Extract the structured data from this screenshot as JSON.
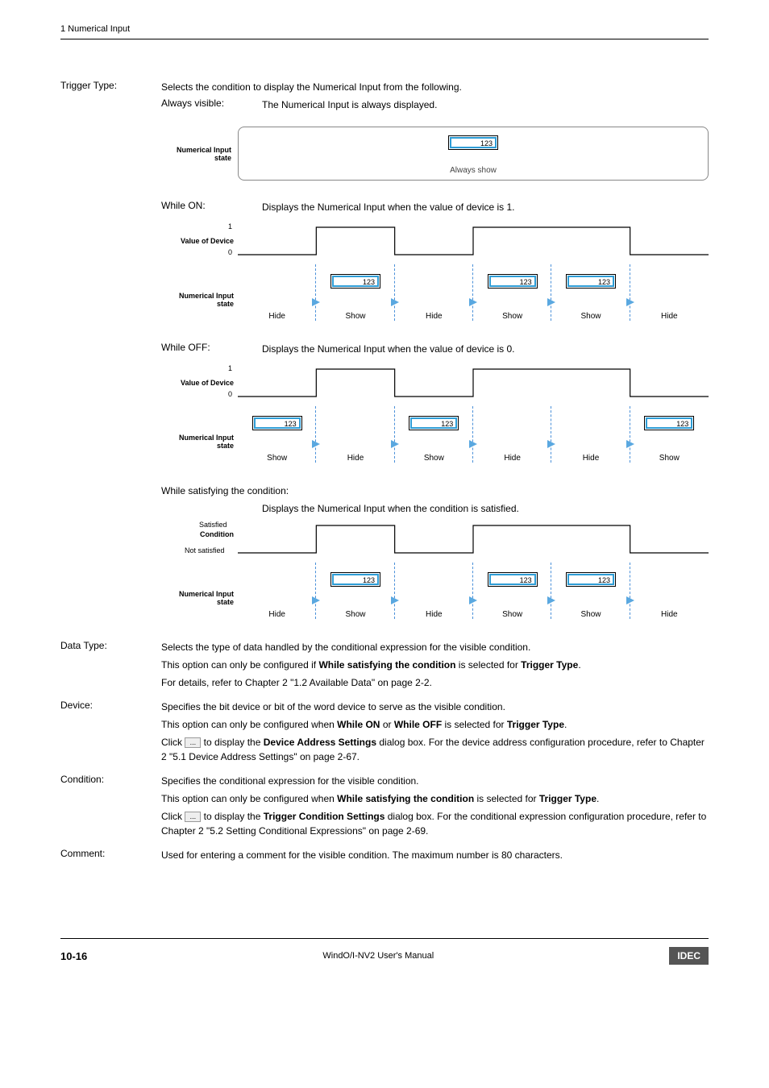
{
  "header": {
    "section": "1 Numerical Input"
  },
  "trigger": {
    "label": "Trigger Type:",
    "desc": "Selects the condition to display the Numerical Input from the following.",
    "always": {
      "label": "Always visible:",
      "desc": "The Numerical Input is always displayed.",
      "diag_label": "Numerical Input state",
      "value": "123",
      "always_show": "Always show"
    },
    "while_on": {
      "label": "While ON:",
      "desc": "Displays the Numerical Input when the value of device is 1.",
      "top_label": "Value of Device",
      "bot_label": "Numerical Input state",
      "tick1": "1",
      "tick0": "0",
      "cells": [
        {
          "label": "Hide",
          "box": false,
          "divider": true
        },
        {
          "label": "Show",
          "box": true,
          "divider": true
        },
        {
          "label": "Hide",
          "box": false,
          "divider": true
        },
        {
          "label": "Show",
          "box": true,
          "divider": true
        },
        {
          "label": "Show",
          "box": true,
          "divider": true
        },
        {
          "label": "Hide",
          "box": false,
          "divider": false
        }
      ],
      "value": "123",
      "wave_hi_segments": [
        [
          1,
          2
        ],
        [
          3,
          5
        ]
      ]
    },
    "while_off": {
      "label": "While OFF:",
      "desc": "Displays the Numerical Input when the value of device is 0.",
      "top_label": "Value of Device",
      "bot_label": "Numerical Input state",
      "tick1": "1",
      "tick0": "0",
      "cells": [
        {
          "label": "Show",
          "box": true,
          "divider": true
        },
        {
          "label": "Hide",
          "box": false,
          "divider": true
        },
        {
          "label": "Show",
          "box": true,
          "divider": true
        },
        {
          "label": "Hide",
          "box": false,
          "divider": true
        },
        {
          "label": "Hide",
          "box": false,
          "divider": true
        },
        {
          "label": "Show",
          "box": true,
          "divider": false
        }
      ],
      "value": "123",
      "wave_hi_segments": [
        [
          1,
          2
        ],
        [
          3,
          5
        ]
      ]
    },
    "while_cond": {
      "heading": "While satisfying the condition:",
      "desc": "Displays the Numerical Input when the condition is satisfied.",
      "top_label": "Condition",
      "bot_label": "Numerical Input state",
      "tick1": "Satisfied",
      "tick0": "Not satisfied",
      "cells": [
        {
          "label": "Hide",
          "box": false,
          "divider": true
        },
        {
          "label": "Show",
          "box": true,
          "divider": true
        },
        {
          "label": "Hide",
          "box": false,
          "divider": true
        },
        {
          "label": "Show",
          "box": true,
          "divider": true
        },
        {
          "label": "Show",
          "box": true,
          "divider": true
        },
        {
          "label": "Hide",
          "box": false,
          "divider": false
        }
      ],
      "value": "123",
      "wave_hi_segments": [
        [
          1,
          2
        ],
        [
          3,
          5
        ]
      ]
    }
  },
  "data_type": {
    "label": "Data Type:",
    "l1": "Selects the type of data handled by the conditional expression for the visible condition.",
    "l2a": "This option can only be configured if ",
    "l2b": "While satisfying the condition",
    "l2c": " is selected for ",
    "l2d": "Trigger Type",
    "l2e": ".",
    "l3": "For details, refer to Chapter 2 \"1.2 Available Data\" on page 2-2."
  },
  "device": {
    "label": "Device:",
    "l1": "Specifies the bit device or bit of the word device to serve as the visible condition.",
    "l2a": "This option can only be configured when ",
    "l2b": "While ON",
    "l2c": " or ",
    "l2d": "While OFF",
    "l2e": " is selected for ",
    "l2f": "Trigger Type",
    "l2g": ".",
    "l3a": "Click ",
    "l3b": " to display the ",
    "l3c": "Device Address Settings",
    "l3d": " dialog box. For the device address configuration procedure, refer to Chapter 2 \"5.1 Device Address Settings\" on page 2-67."
  },
  "condition": {
    "label": "Condition:",
    "l1": "Specifies the conditional expression for the visible condition.",
    "l2a": "This option can only be configured when ",
    "l2b": "While satisfying the condition",
    "l2c": " is selected for ",
    "l2d": "Trigger Type",
    "l2e": ".",
    "l3a": "Click ",
    "l3b": " to display the ",
    "l3c": "Trigger Condition Settings",
    "l3d": " dialog box. For the conditional expression configuration procedure, refer to Chapter 2 \"5.2 Setting Conditional Expressions\" on page 2-69."
  },
  "comment": {
    "label": "Comment:",
    "desc": "Used for entering a comment for the visible condition. The maximum number is 80 characters."
  },
  "footer": {
    "page": "10-16",
    "title": "WindO/I-NV2 User's Manual",
    "brand": "IDEC"
  },
  "svg": {
    "stroke": "#000000",
    "stroke_width": 1.2,
    "height": 40
  }
}
